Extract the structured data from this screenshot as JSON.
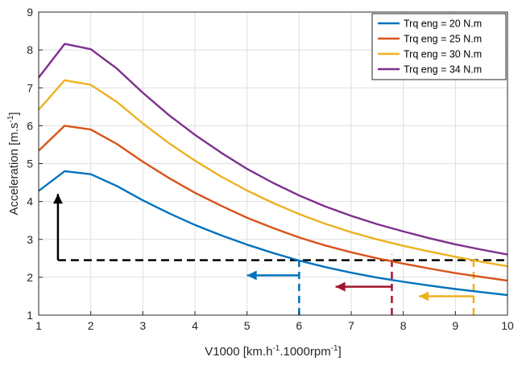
{
  "chart_data": {
    "type": "line",
    "x": [
      1,
      1.5,
      2,
      2.5,
      3,
      3.5,
      4,
      4.5,
      5,
      5.5,
      6,
      6.5,
      7,
      7.5,
      8,
      8.5,
      9,
      9.5,
      10
    ],
    "series": [
      {
        "name": "Trq eng = 20 N.m",
        "color": "#0072bd",
        "values": [
          4.28,
          4.8,
          4.72,
          4.41,
          4.03,
          3.69,
          3.38,
          3.11,
          2.86,
          2.64,
          2.44,
          2.27,
          2.12,
          1.99,
          1.88,
          1.78,
          1.69,
          1.61,
          1.53
        ]
      },
      {
        "name": "Trq eng = 25 N.m",
        "color": "#d95319",
        "values": [
          5.34,
          6.0,
          5.9,
          5.52,
          5.05,
          4.62,
          4.23,
          3.89,
          3.57,
          3.3,
          3.05,
          2.84,
          2.66,
          2.5,
          2.36,
          2.23,
          2.11,
          2.01,
          1.91
        ]
      },
      {
        "name": "Trq eng = 30 N.m",
        "color": "#edb120",
        "values": [
          6.42,
          7.2,
          7.08,
          6.63,
          6.06,
          5.54,
          5.08,
          4.66,
          4.29,
          3.96,
          3.67,
          3.41,
          3.19,
          3.0,
          2.83,
          2.68,
          2.54,
          2.41,
          2.29
        ]
      },
      {
        "name": "Trq eng = 34 N.m",
        "color": "#7e2f8e",
        "values": [
          7.27,
          8.16,
          8.02,
          7.51,
          6.87,
          6.28,
          5.76,
          5.29,
          4.86,
          4.49,
          4.16,
          3.87,
          3.62,
          3.4,
          3.21,
          3.03,
          2.87,
          2.73,
          2.6
        ]
      }
    ],
    "xlabel": "V1000 [km.h",
    "xlabel_sup1": "-1",
    "xlabel_mid": ".1000rpm",
    "xlabel_sup2": "-1",
    "xlabel_end": "]",
    "ylabel": "Acceleration [m.s",
    "ylabel_sup": "-1",
    "ylabel_end": "]",
    "xlim": [
      1,
      10
    ],
    "ylim": [
      1,
      9
    ],
    "xticks": [
      1,
      2,
      3,
      4,
      5,
      6,
      7,
      8,
      9,
      10
    ],
    "yticks": [
      1,
      2,
      3,
      4,
      5,
      6,
      7,
      8,
      9
    ],
    "grid": true,
    "legend_position": "top-right",
    "annotations": {
      "threshold_line": {
        "y": 2.45,
        "x_start": 1.37,
        "x_end": 10,
        "color": "#000000",
        "style": "dashed"
      },
      "up_arrow": {
        "x": 1.37,
        "y_from": 2.45,
        "y_to": 4.2,
        "color": "#000000"
      },
      "verticals": [
        {
          "x": 6.0,
          "y_from": 1,
          "y_to": 2.6,
          "color": "#0072bd",
          "arrow_from": 6.0,
          "arrow_to": 5.0,
          "arrow_y": 2.05
        },
        {
          "x": 7.78,
          "y_from": 1,
          "y_to": 2.6,
          "color": "#a2142f",
          "arrow_from": 7.78,
          "arrow_to": 6.7,
          "arrow_y": 1.75
        },
        {
          "x": 9.35,
          "y_from": 1,
          "y_to": 2.6,
          "color": "#edb120",
          "arrow_from": 9.35,
          "arrow_to": 8.3,
          "arrow_y": 1.5
        }
      ]
    }
  }
}
